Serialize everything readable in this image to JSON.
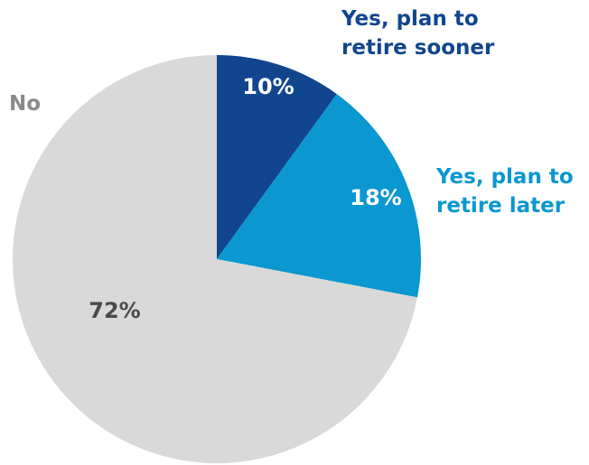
{
  "chart_data": {
    "type": "pie",
    "start_angle_deg": 0,
    "direction": "clockwise",
    "slices": [
      {
        "label": "Yes, plan to retire sooner",
        "label_lines": [
          "Yes, plan to",
          "retire sooner"
        ],
        "value": 10,
        "value_label": "10%",
        "color": "#11468e",
        "value_label_color": "#ffffff",
        "category_label_color": "#11468e"
      },
      {
        "label": "Yes, plan to retire later",
        "label_lines": [
          "Yes, plan to",
          "retire later"
        ],
        "value": 18,
        "value_label": "18%",
        "color": "#0b97cf",
        "value_label_color": "#ffffff",
        "category_label_color": "#0b97cf"
      },
      {
        "label": "No",
        "label_lines": [
          "No"
        ],
        "value": 72,
        "value_label": "72%",
        "color": "#d9d9d9",
        "value_label_color": "#4a4a4a",
        "category_label_color": "#8a8a8a"
      }
    ]
  }
}
